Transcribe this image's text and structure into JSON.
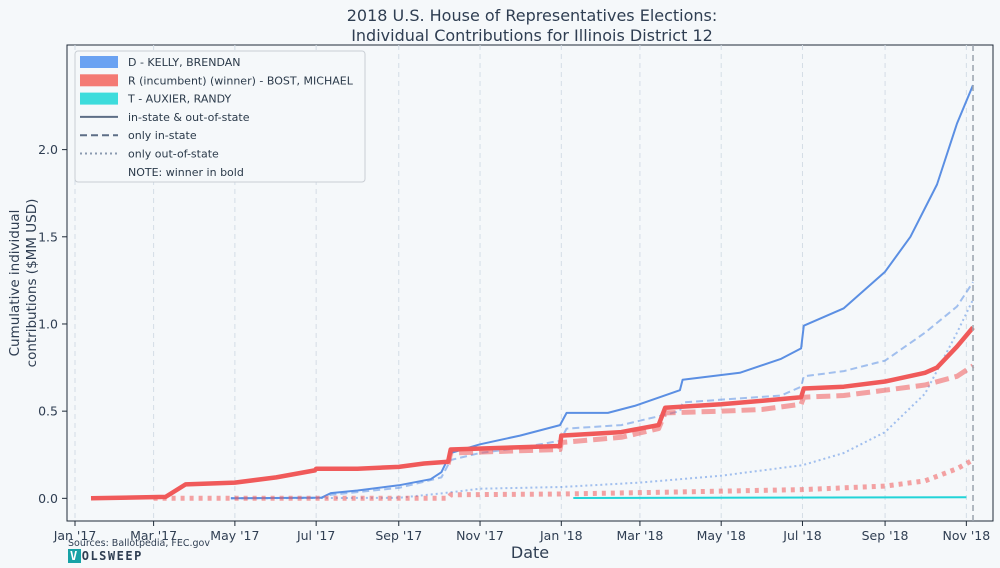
{
  "chart_data": {
    "type": "line",
    "title": [
      "2018 U.S. House of Representatives Elections:",
      "Individual Contributions for Illinois District 12"
    ],
    "xlabel": "Date",
    "ylabel": [
      "Cumulative individual",
      "contributions ($MM USD)"
    ],
    "x_ticks": [
      {
        "date": "2017-01-01",
        "label": "Jan '17"
      },
      {
        "date": "2017-03-01",
        "label": "Mar '17"
      },
      {
        "date": "2017-05-01",
        "label": "May '17"
      },
      {
        "date": "2017-07-01",
        "label": "Jul '17"
      },
      {
        "date": "2017-09-01",
        "label": "Sep '17"
      },
      {
        "date": "2017-11-01",
        "label": "Nov '17"
      },
      {
        "date": "2018-01-01",
        "label": "Jan '18"
      },
      {
        "date": "2018-03-01",
        "label": "Mar '18"
      },
      {
        "date": "2018-05-01",
        "label": "May '18"
      },
      {
        "date": "2018-07-01",
        "label": "Jul '18"
      },
      {
        "date": "2018-09-01",
        "label": "Sep '18"
      },
      {
        "date": "2018-11-01",
        "label": "Nov '18"
      }
    ],
    "y_ticks": [
      {
        "value": 0.0,
        "label": "0.0"
      },
      {
        "value": 0.5,
        "label": "0.5"
      },
      {
        "value": 1.0,
        "label": "1.0"
      },
      {
        "value": 1.5,
        "label": "1.5"
      },
      {
        "value": 2.0,
        "label": "2.0"
      }
    ],
    "xlim": [
      "2016-12-26",
      "2018-11-21"
    ],
    "ylim": [
      -0.13,
      2.6
    ],
    "grid": "vertical dashed lines",
    "legend_position": "top-left",
    "election_date": "2018-11-06",
    "series": [
      {
        "name": "D - KELLY, BRENDAN",
        "party": "D",
        "variant": "in-state & out-of-state",
        "color": "#5b8fe3",
        "style": "solid",
        "bold": false,
        "points": [
          [
            "2017-04-28",
            0
          ],
          [
            "2017-07-05",
            0.004
          ],
          [
            "2017-07-12",
            0.03
          ],
          [
            "2017-08-01",
            0.045
          ],
          [
            "2017-09-01",
            0.075
          ],
          [
            "2017-09-25",
            0.11
          ],
          [
            "2017-10-03",
            0.15
          ],
          [
            "2017-10-10",
            0.26
          ],
          [
            "2017-11-01",
            0.31
          ],
          [
            "2017-12-01",
            0.36
          ],
          [
            "2017-12-31",
            0.42
          ],
          [
            "2018-01-05",
            0.49
          ],
          [
            "2018-02-05",
            0.49
          ],
          [
            "2018-02-25",
            0.53
          ],
          [
            "2018-03-31",
            0.62
          ],
          [
            "2018-04-02",
            0.68
          ],
          [
            "2018-05-15",
            0.72
          ],
          [
            "2018-06-15",
            0.8
          ],
          [
            "2018-06-30",
            0.86
          ],
          [
            "2018-07-02",
            0.99
          ],
          [
            "2018-08-01",
            1.09
          ],
          [
            "2018-09-01",
            1.3
          ],
          [
            "2018-09-20",
            1.5
          ],
          [
            "2018-10-10",
            1.8
          ],
          [
            "2018-10-25",
            2.15
          ],
          [
            "2018-11-06",
            2.37
          ]
        ]
      },
      {
        "name": "D - KELLY, BRENDAN",
        "party": "D",
        "variant": "only in-state",
        "color": "#5b8fe3",
        "style": "dashed",
        "bold": false,
        "points": [
          [
            "2017-04-28",
            0
          ],
          [
            "2017-07-05",
            0.003
          ],
          [
            "2017-07-12",
            0.02
          ],
          [
            "2017-09-01",
            0.06
          ],
          [
            "2017-10-03",
            0.12
          ],
          [
            "2017-10-10",
            0.22
          ],
          [
            "2017-11-01",
            0.26
          ],
          [
            "2017-12-01",
            0.29
          ],
          [
            "2017-12-31",
            0.33
          ],
          [
            "2018-01-05",
            0.4
          ],
          [
            "2018-02-15",
            0.42
          ],
          [
            "2018-03-31",
            0.5
          ],
          [
            "2018-04-02",
            0.55
          ],
          [
            "2018-06-15",
            0.59
          ],
          [
            "2018-06-30",
            0.64
          ],
          [
            "2018-07-02",
            0.7
          ],
          [
            "2018-08-01",
            0.73
          ],
          [
            "2018-09-01",
            0.79
          ],
          [
            "2018-10-01",
            0.95
          ],
          [
            "2018-10-25",
            1.1
          ],
          [
            "2018-11-06",
            1.24
          ]
        ]
      },
      {
        "name": "D - KELLY, BRENDAN",
        "party": "D",
        "variant": "only out-of-state",
        "color": "#5b8fe3",
        "style": "dotted",
        "bold": false,
        "points": [
          [
            "2017-04-28",
            0
          ],
          [
            "2017-09-01",
            0.003
          ],
          [
            "2017-10-05",
            0.03
          ],
          [
            "2017-11-01",
            0.055
          ],
          [
            "2018-01-01",
            0.065
          ],
          [
            "2018-03-01",
            0.09
          ],
          [
            "2018-05-01",
            0.13
          ],
          [
            "2018-07-01",
            0.19
          ],
          [
            "2018-08-01",
            0.26
          ],
          [
            "2018-09-01",
            0.38
          ],
          [
            "2018-10-01",
            0.6
          ],
          [
            "2018-10-25",
            0.95
          ],
          [
            "2018-11-06",
            1.14
          ]
        ]
      },
      {
        "name": "R (incumbent) (winner) - BOST, MICHAEL",
        "party": "R",
        "variant": "in-state & out-of-state",
        "color": "#f05a5a",
        "style": "solid",
        "bold": true,
        "points": [
          [
            "2017-01-13",
            0
          ],
          [
            "2017-03-10",
            0.008
          ],
          [
            "2017-03-25",
            0.08
          ],
          [
            "2017-05-01",
            0.09
          ],
          [
            "2017-06-01",
            0.12
          ],
          [
            "2017-06-30",
            0.16
          ],
          [
            "2017-07-01",
            0.17
          ],
          [
            "2017-08-01",
            0.17
          ],
          [
            "2017-09-01",
            0.18
          ],
          [
            "2017-09-20",
            0.2
          ],
          [
            "2017-10-08",
            0.21
          ],
          [
            "2017-10-10",
            0.28
          ],
          [
            "2017-12-31",
            0.3
          ],
          [
            "2018-01-01",
            0.36
          ],
          [
            "2018-02-15",
            0.38
          ],
          [
            "2018-03-15",
            0.42
          ],
          [
            "2018-03-20",
            0.52
          ],
          [
            "2018-05-01",
            0.54
          ],
          [
            "2018-06-01",
            0.56
          ],
          [
            "2018-06-30",
            0.58
          ],
          [
            "2018-07-02",
            0.63
          ],
          [
            "2018-08-01",
            0.64
          ],
          [
            "2018-09-01",
            0.67
          ],
          [
            "2018-10-01",
            0.72
          ],
          [
            "2018-10-10",
            0.75
          ],
          [
            "2018-10-25",
            0.87
          ],
          [
            "2018-11-06",
            0.98
          ]
        ]
      },
      {
        "name": "R (incumbent) (winner) - BOST, MICHAEL",
        "party": "R",
        "variant": "only in-state",
        "color": "#f05a5a",
        "style": "dashed",
        "bold": true,
        "points": [
          [
            "2017-10-08",
            0.195
          ],
          [
            "2017-10-10",
            0.26
          ],
          [
            "2017-12-31",
            0.28
          ],
          [
            "2018-01-01",
            0.32
          ],
          [
            "2018-02-15",
            0.35
          ],
          [
            "2018-03-15",
            0.4
          ],
          [
            "2018-03-20",
            0.49
          ],
          [
            "2018-05-01",
            0.5
          ],
          [
            "2018-06-01",
            0.51
          ],
          [
            "2018-06-30",
            0.54
          ],
          [
            "2018-07-02",
            0.58
          ],
          [
            "2018-08-01",
            0.59
          ],
          [
            "2018-09-01",
            0.62
          ],
          [
            "2018-10-01",
            0.65
          ],
          [
            "2018-10-25",
            0.7
          ],
          [
            "2018-11-06",
            0.76
          ]
        ]
      },
      {
        "name": "R (incumbent) (winner) - BOST, MICHAEL",
        "party": "R",
        "variant": "only out-of-state",
        "color": "#f05a5a",
        "style": "dotted",
        "bold": true,
        "points": [
          [
            "2017-03-01",
            0
          ],
          [
            "2017-10-08",
            0
          ],
          [
            "2017-10-10",
            0.02
          ],
          [
            "2018-01-01",
            0.025
          ],
          [
            "2018-03-20",
            0.035
          ],
          [
            "2018-07-01",
            0.05
          ],
          [
            "2018-09-01",
            0.07
          ],
          [
            "2018-10-01",
            0.1
          ],
          [
            "2018-10-25",
            0.17
          ],
          [
            "2018-11-06",
            0.22
          ]
        ]
      },
      {
        "name": "T - AUXIER, RANDY",
        "party": "T",
        "variant": "in-state & out-of-state",
        "color": "#22d4d8",
        "style": "solid",
        "bold": false,
        "points": [
          [
            "2018-01-10",
            0.002
          ],
          [
            "2018-06-01",
            0.004
          ],
          [
            "2018-11-01",
            0.006
          ]
        ]
      }
    ],
    "legend": [
      {
        "label": "D - KELLY, BRENDAN",
        "kind": "patch",
        "color": "#6aa2f2"
      },
      {
        "label": "R (incumbent) (winner) - BOST, MICHAEL",
        "kind": "patch",
        "color": "#f47a74"
      },
      {
        "label": "T - AUXIER, RANDY",
        "kind": "patch",
        "color": "#3ddcdc"
      },
      {
        "label": "in-state & out-of-state",
        "kind": "line",
        "style": "solid",
        "color": "#5d6e86"
      },
      {
        "label": "only in-state",
        "kind": "line",
        "style": "dashed",
        "color": "#5d6e86"
      },
      {
        "label": "only out-of-state",
        "kind": "line",
        "style": "dotted",
        "color": "#8a9ab0"
      },
      {
        "label": "NOTE: winner in bold",
        "kind": "note"
      }
    ]
  },
  "footer": {
    "sources": "Sources: Ballotpedia, FEC.gov",
    "logo_first": "V",
    "logo_rest": "OLSWEEP"
  }
}
